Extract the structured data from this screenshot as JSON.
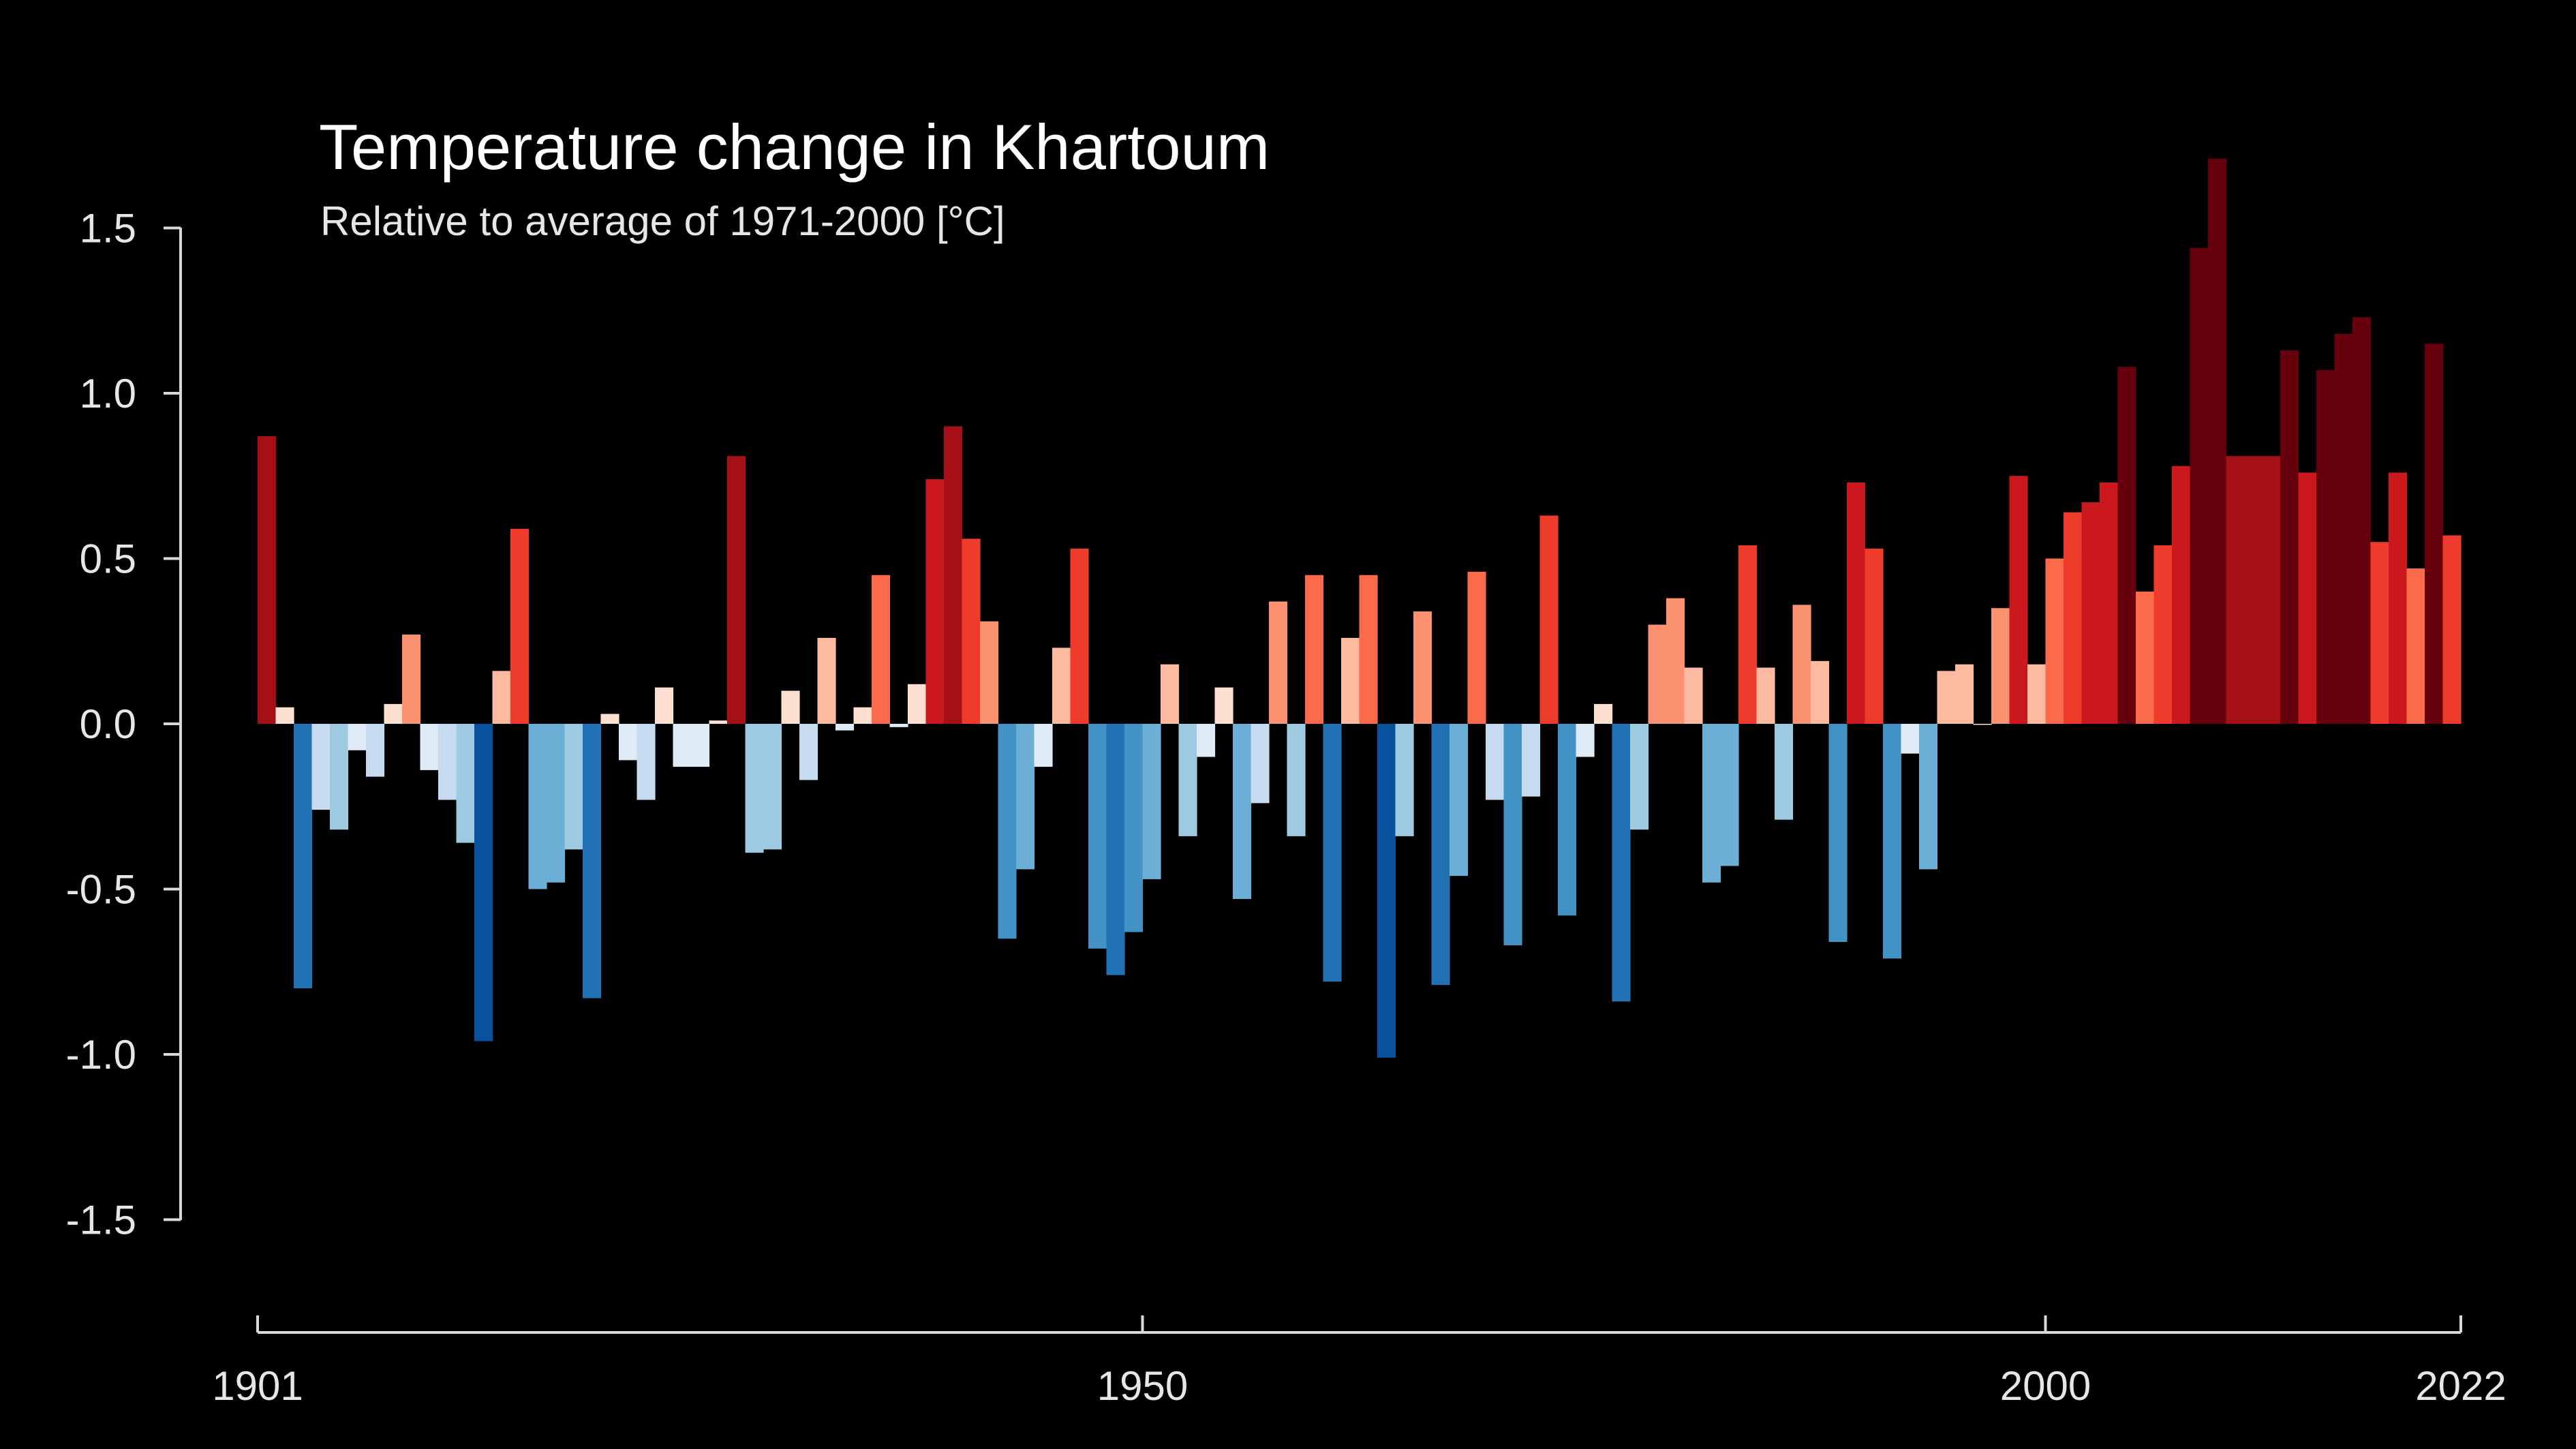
{
  "chart_data": {
    "type": "bar",
    "title": "Temperature change in Khartoum",
    "subtitle": "Relative to average of 1971-2000  [°C]",
    "xlabel": "",
    "ylabel": "",
    "x_start": 1901,
    "x_end": 2022,
    "ylim": [
      -1.5,
      1.5
    ],
    "y_ticks": [
      "1.5",
      "1.0",
      "0.5",
      "0.0",
      "-0.5",
      "-1.0",
      "-1.5"
    ],
    "x_ticks": [
      "1901",
      "1950",
      "2000",
      "2022"
    ],
    "grid": false,
    "legend": "none",
    "colors": {
      "background": "#000000",
      "axis": "#d9d9d9",
      "text": "#ffffff",
      "neg_strong": "#08306b",
      "neg_mid": "#4292c6",
      "neg_light": "#deebf7",
      "pos_light": "#fee0d2",
      "pos_mid": "#ef3b2c",
      "pos_strong": "#67000d"
    },
    "years": [
      1901,
      1902,
      1903,
      1904,
      1905,
      1906,
      1907,
      1908,
      1909,
      1910,
      1911,
      1912,
      1913,
      1914,
      1915,
      1916,
      1917,
      1918,
      1919,
      1920,
      1921,
      1922,
      1923,
      1924,
      1925,
      1926,
      1927,
      1928,
      1929,
      1930,
      1931,
      1932,
      1933,
      1934,
      1935,
      1936,
      1937,
      1938,
      1939,
      1940,
      1941,
      1942,
      1943,
      1944,
      1945,
      1946,
      1947,
      1948,
      1949,
      1950,
      1951,
      1952,
      1953,
      1954,
      1955,
      1956,
      1957,
      1958,
      1959,
      1960,
      1961,
      1962,
      1963,
      1964,
      1965,
      1966,
      1967,
      1968,
      1969,
      1970,
      1971,
      1972,
      1973,
      1974,
      1975,
      1976,
      1977,
      1978,
      1979,
      1980,
      1981,
      1982,
      1983,
      1984,
      1985,
      1986,
      1987,
      1988,
      1989,
      1990,
      1991,
      1992,
      1993,
      1994,
      1995,
      1996,
      1997,
      1998,
      1999,
      2000,
      2001,
      2002,
      2003,
      2004,
      2005,
      2006,
      2007,
      2008,
      2009,
      2010,
      2011,
      2012,
      2013,
      2014,
      2015,
      2016,
      2017,
      2018,
      2019,
      2020,
      2021,
      2022
    ],
    "values": [
      0.87,
      0.05,
      -0.8,
      -0.26,
      -0.32,
      -0.08,
      -0.16,
      0.06,
      0.27,
      -0.14,
      -0.23,
      -0.36,
      -0.96,
      0.16,
      0.59,
      -0.5,
      -0.48,
      -0.38,
      -0.83,
      0.03,
      -0.11,
      -0.23,
      0.11,
      -0.13,
      -0.13,
      0.01,
      0.81,
      -0.39,
      -0.38,
      0.1,
      -0.17,
      0.26,
      -0.02,
      0.05,
      0.45,
      -0.01,
      0.12,
      0.74,
      0.9,
      0.56,
      0.31,
      -0.65,
      -0.44,
      -0.13,
      0.23,
      0.53,
      -0.68,
      -0.76,
      -0.63,
      -0.47,
      0.18,
      -0.34,
      -0.1,
      0.11,
      -0.53,
      -0.24,
      0.37,
      -0.34,
      0.45,
      -0.78,
      0.26,
      0.45,
      -1.01,
      -0.34,
      0.34,
      -0.79,
      -0.46,
      0.46,
      -0.23,
      -0.67,
      -0.22,
      0.63,
      -0.58,
      -0.1,
      0.06,
      -0.84,
      -0.32,
      0.3,
      0.38,
      0.17,
      -0.48,
      -0.43,
      0.54,
      0.17,
      -0.29,
      0.36,
      0.19,
      -0.66,
      0.73,
      0.53,
      -0.71,
      -0.09,
      -0.44,
      0.16,
      0.18,
      0.0,
      0.35,
      0.75,
      0.18,
      0.5,
      0.64,
      0.67,
      0.73,
      1.08,
      0.4,
      0.54,
      0.78,
      1.44,
      1.71,
      0.81,
      0.81,
      0.81,
      1.13,
      0.76,
      1.07,
      1.18,
      1.23,
      0.55,
      0.76,
      0.47,
      1.15,
      0.57
    ]
  }
}
